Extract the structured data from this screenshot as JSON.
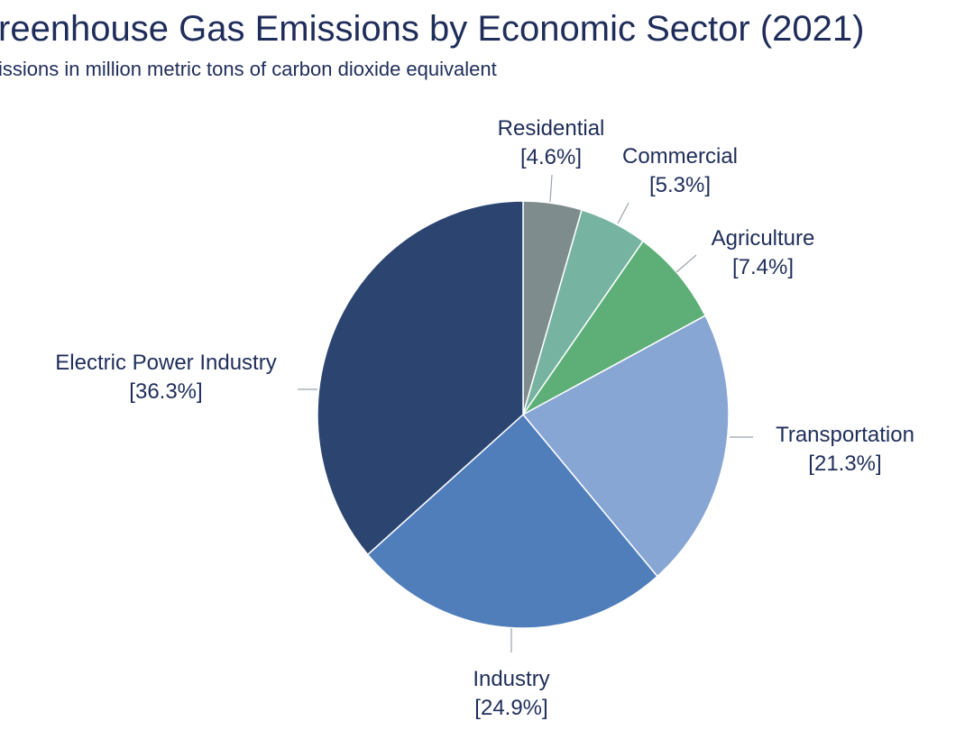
{
  "chart_data": {
    "type": "pie",
    "title": "reenhouse Gas Emissions by Economic Sector (2021)",
    "subtitle": "issions in million metric tons of carbon dioxide equivalent",
    "start": "top",
    "direction": "clockwise",
    "slices": [
      {
        "label": "Residential",
        "value": 4.6,
        "pct_label": "[4.6%]",
        "color": "#7f8c8d"
      },
      {
        "label": "Commercial",
        "value": 5.3,
        "pct_label": "[5.3%]",
        "color": "#76b3a0"
      },
      {
        "label": "Agriculture",
        "value": 7.4,
        "pct_label": "[7.4%]",
        "color": "#5daf77"
      },
      {
        "label": "Transportation",
        "value": 21.3,
        "pct_label": "[21.3%]",
        "color": "#87a6d4"
      },
      {
        "label": "Industry",
        "value": 24.9,
        "pct_label": "[24.9%]",
        "color": "#4f7ebb"
      },
      {
        "label": "Electric Power Industry",
        "value": 36.3,
        "pct_label": "[36.3%]",
        "color": "#2c4570"
      }
    ]
  }
}
